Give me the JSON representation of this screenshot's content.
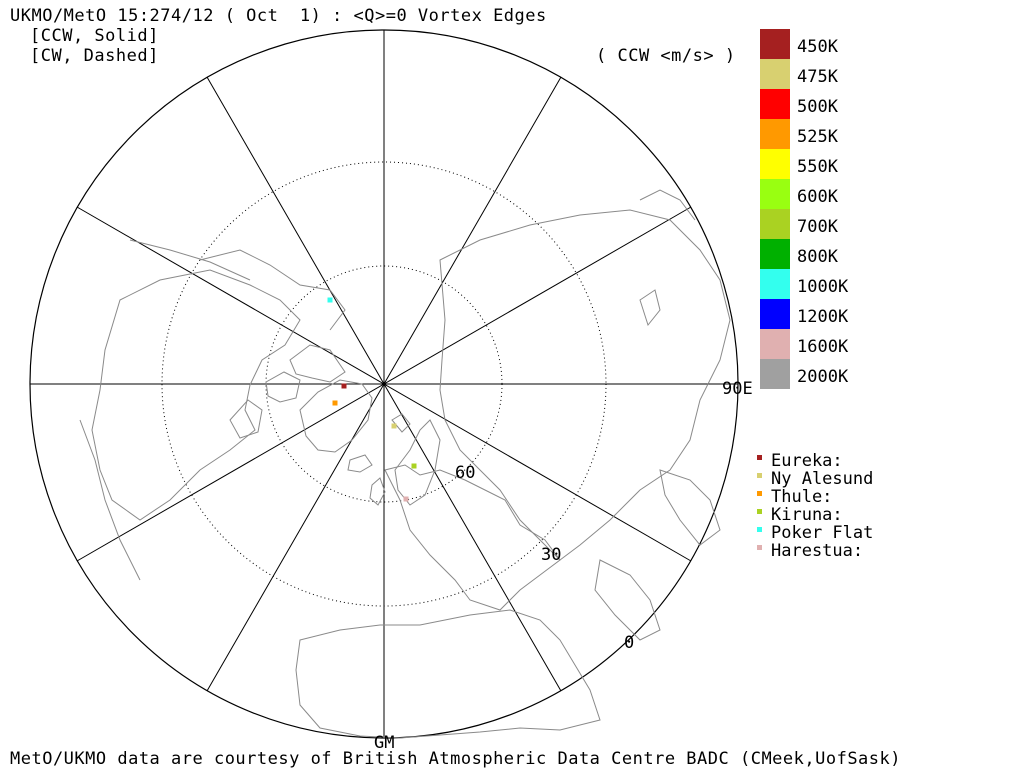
{
  "header": {
    "title": "UKMO/MetO 15:274/12 ( Oct  1) : <Q>=0 Vortex Edges",
    "line2": "[CCW, Solid]",
    "line3": "[CW, Dashed]",
    "units": "( CCW <m/s> )"
  },
  "footer": {
    "credit": "MetO/UKMO data are courtesy of British Atmospheric Data Centre BADC (CMeek,UofSask)"
  },
  "map": {
    "labels": {
      "lon_east": "90E",
      "lon_bottom": "GM",
      "lat_60": "60",
      "lat_30": "30",
      "lat_0": "0"
    },
    "coast_color": "#8a8a8a",
    "grid_color": "#000000"
  },
  "legend": {
    "levels": [
      {
        "label": "450K",
        "color": "#a52020"
      },
      {
        "label": "475K",
        "color": "#d8d070"
      },
      {
        "label": "500K",
        "color": "#ff0000"
      },
      {
        "label": "525K",
        "color": "#ff9900"
      },
      {
        "label": "550K",
        "color": "#ffff00"
      },
      {
        "label": "600K",
        "color": "#99ff11"
      },
      {
        "label": "700K",
        "color": "#aad222"
      },
      {
        "label": "800K",
        "color": "#00b000"
      },
      {
        "label": "1000K",
        "color": "#33ffee"
      },
      {
        "label": "1200K",
        "color": "#0000ff"
      },
      {
        "label": "1600K",
        "color": "#e0b0b0"
      },
      {
        "label": "2000K",
        "color": "#a0a0a0"
      }
    ]
  },
  "sites": [
    {
      "name": "Eureka:",
      "color": "#a52020"
    },
    {
      "name": "Ny Alesund",
      "color": "#d8d070"
    },
    {
      "name": "Thule:",
      "color": "#ff9900"
    },
    {
      "name": "Kiruna:",
      "color": "#aad222"
    },
    {
      "name": "Poker Flat",
      "color": "#33ffee"
    },
    {
      "name": "Harestua:",
      "color": "#e0b0b0"
    }
  ]
}
